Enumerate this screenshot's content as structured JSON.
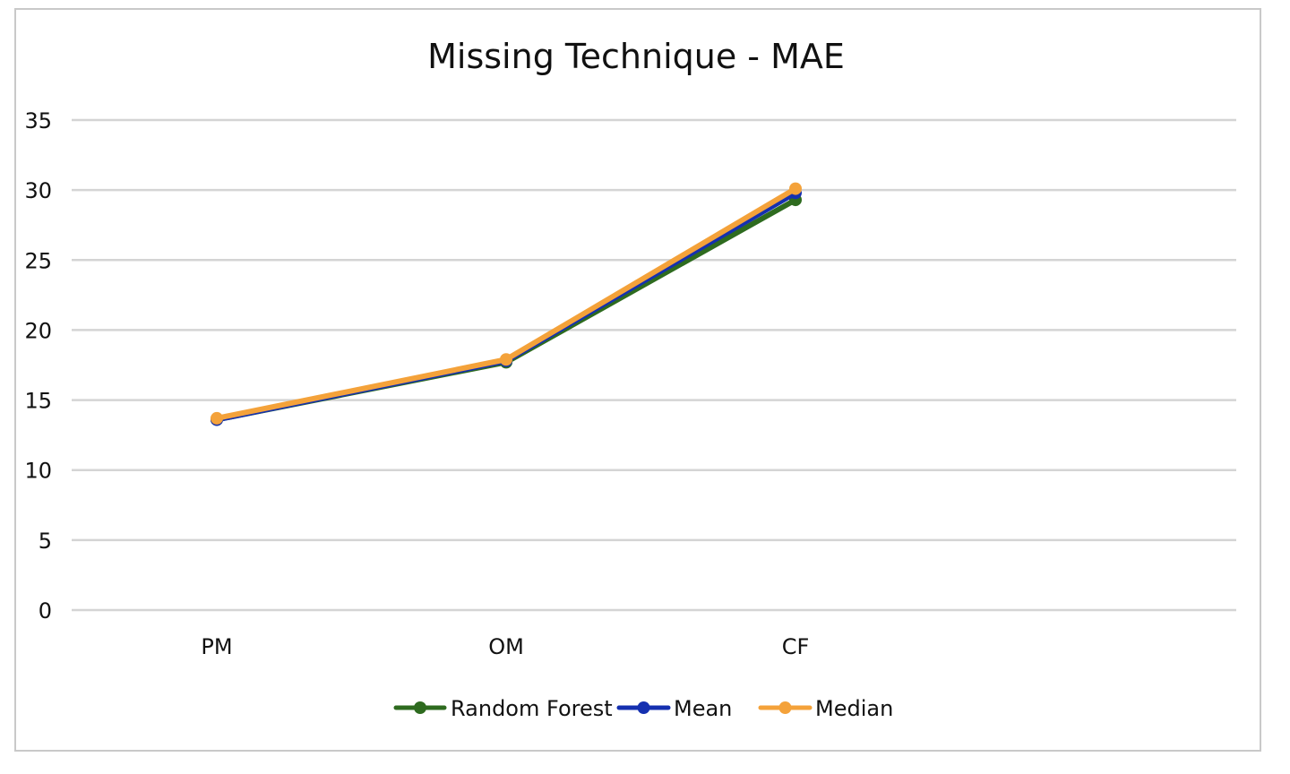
{
  "chart_data": {
    "type": "line",
    "title": "Missing Technique - MAE",
    "xlabel": "",
    "ylabel": "",
    "categories": [
      "PM",
      "OM",
      "CF"
    ],
    "ylim": [
      0,
      35
    ],
    "yticks": [
      "0",
      "5",
      "10",
      "15",
      "20",
      "25",
      "30",
      "35"
    ],
    "grid": true,
    "legend_position": "bottom",
    "series": [
      {
        "name": "Random Forest",
        "values": [
          13.6,
          17.7,
          29.3
        ],
        "color": "#2e6b1f"
      },
      {
        "name": "Mean",
        "values": [
          13.6,
          17.8,
          29.8
        ],
        "color": "#1530b0"
      },
      {
        "name": "Median",
        "values": [
          13.7,
          17.9,
          30.1
        ],
        "color": "#f4a23a"
      }
    ]
  }
}
